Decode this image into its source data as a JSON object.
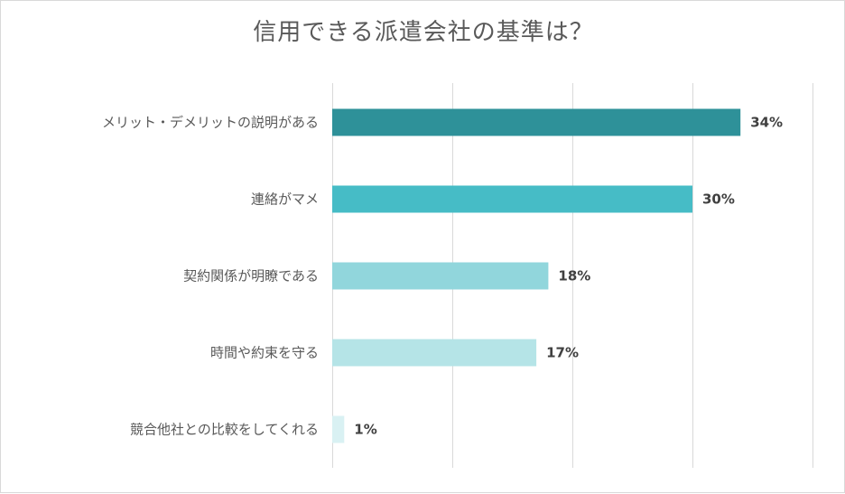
{
  "chart_data": {
    "type": "bar",
    "orientation": "horizontal",
    "title": "信用できる派遣会社の基準は？",
    "categories": [
      "メリット・デメリットの説明がある",
      "連絡がマメ",
      "契約関係が明瞭である",
      "時間や約束を守る",
      "競合他社との比較をしてくれる"
    ],
    "values": [
      34,
      30,
      18,
      17,
      1
    ],
    "value_labels": [
      "34%",
      "30%",
      "18%",
      "17%",
      "1%"
    ],
    "unit": "%",
    "xlim": [
      0,
      40
    ],
    "grid": true,
    "colors": [
      "#2e9199",
      "#46bcc6",
      "#91d6dc",
      "#b5e4e7",
      "#d9f1f3"
    ]
  }
}
